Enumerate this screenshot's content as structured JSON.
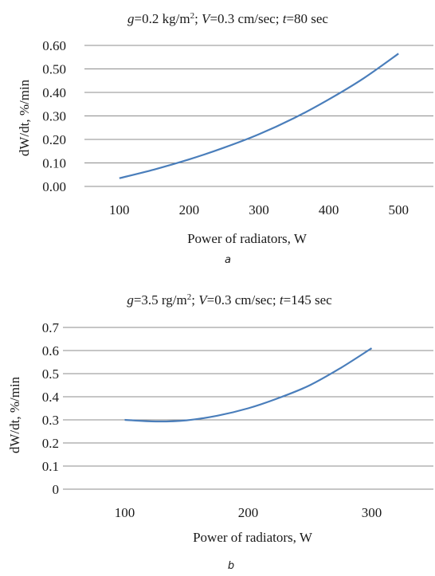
{
  "charts": [
    {
      "caption": "a",
      "title": {
        "p1": "g",
        "p2": "=0.2 kg/m",
        "p3": "2",
        "p4": "; ",
        "p5": "V",
        "p6": "=0.3 cm/sec; ",
        "p7": "t",
        "p8": "=80 sec"
      }
    },
    {
      "caption": "b",
      "title": {
        "p1": "g",
        "p2": "=3.5 rg/m",
        "p3": "2",
        "p4": "; ",
        "p5": "V",
        "p6": "=0.3 cm/sec; ",
        "p7": "t",
        "p8": "=145 sec"
      }
    }
  ],
  "chart_data": [
    {
      "type": "line",
      "xlabel": "Power of radiators, W",
      "ylabel": "dW/dt, %/min",
      "xlim": [
        50,
        550
      ],
      "ylim": [
        0,
        0.6
      ],
      "x_ticks": [
        100,
        200,
        300,
        400,
        500
      ],
      "y_ticks": [
        0,
        0.1,
        0.2,
        0.3,
        0.4,
        0.5,
        0.6
      ],
      "x_tick_labels": [
        "100",
        "200",
        "300",
        "400",
        "500"
      ],
      "y_tick_labels": [
        "0.00",
        "0.10",
        "0.20",
        "0.30",
        "0.40",
        "0.50",
        "0.60"
      ],
      "grid": true,
      "series": [
        {
          "color": "#4a7ebb",
          "x": [
            100,
            150,
            200,
            250,
            300,
            350,
            400,
            450,
            500
          ],
          "y": [
            0.035,
            0.072,
            0.115,
            0.165,
            0.222,
            0.29,
            0.37,
            0.46,
            0.565
          ]
        }
      ]
    },
    {
      "type": "line",
      "xlabel": "Power of radiators, W",
      "ylabel": "dW/dt, %/min",
      "xlim": [
        50,
        350
      ],
      "ylim": [
        0,
        0.7
      ],
      "x_ticks": [
        100,
        200,
        300
      ],
      "y_ticks": [
        0,
        0.1,
        0.2,
        0.3,
        0.4,
        0.5,
        0.6,
        0.7
      ],
      "x_tick_labels": [
        "100",
        "200",
        "300"
      ],
      "y_tick_labels": [
        "0",
        "0.1",
        "0.2",
        "0.3",
        "0.4",
        "0.5",
        "0.6",
        "0.7"
      ],
      "grid": true,
      "series": [
        {
          "color": "#4a7ebb",
          "x": [
            100,
            125,
            150,
            175,
            200,
            225,
            250,
            275,
            300
          ],
          "y": [
            0.3,
            0.293,
            0.298,
            0.318,
            0.35,
            0.395,
            0.45,
            0.525,
            0.61
          ]
        }
      ]
    }
  ]
}
